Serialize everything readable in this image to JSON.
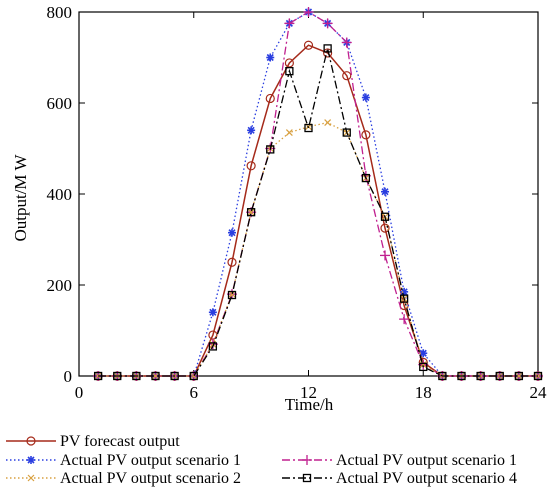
{
  "chart_data": {
    "type": "line",
    "title": "",
    "xlabel": "Time/h",
    "ylabel": "Output/M W",
    "xlim": [
      0,
      24
    ],
    "ylim": [
      0,
      800
    ],
    "xticks": [
      0,
      6,
      12,
      18,
      24
    ],
    "yticks": [
      0,
      200,
      400,
      600,
      800
    ],
    "grid": false,
    "legend_position": "bottom",
    "x": [
      1,
      2,
      3,
      4,
      5,
      6,
      7,
      8,
      9,
      10,
      11,
      12,
      13,
      14,
      15,
      16,
      17,
      18,
      19,
      20,
      21,
      22,
      23,
      24
    ],
    "series": [
      {
        "name": "PV forecast output",
        "color": "#a52a1a",
        "marker": "circle",
        "dash": "solid",
        "values": [
          0,
          0,
          0,
          0,
          0,
          0,
          90,
          250,
          462,
          610,
          688,
          727,
          710,
          660,
          530,
          325,
          155,
          30,
          0,
          0,
          0,
          0,
          0,
          0
        ]
      },
      {
        "name": "Actual PV output scenario 1",
        "color": "#2a3ee0",
        "marker": "asterisk",
        "dash": "dotted",
        "values": [
          0,
          0,
          0,
          0,
          0,
          0,
          140,
          315,
          540,
          700,
          775,
          800,
          775,
          733,
          612,
          405,
          185,
          50,
          0,
          0,
          0,
          0,
          0,
          0
        ]
      },
      {
        "name": "Actual PV output scenario 1",
        "color": "#c0208f",
        "marker": "plus",
        "dash": "dashdot",
        "values": [
          0,
          0,
          0,
          0,
          0,
          0,
          70,
          180,
          360,
          500,
          775,
          800,
          775,
          733,
          440,
          265,
          125,
          25,
          0,
          0,
          0,
          0,
          0,
          0
        ]
      },
      {
        "name": "Actual PV output scenario 2",
        "color": "#d8a040",
        "marker": "x",
        "dash": "dotted",
        "values": [
          0,
          0,
          0,
          0,
          0,
          0,
          70,
          180,
          360,
          500,
          535,
          548,
          557,
          535,
          435,
          350,
          170,
          25,
          0,
          0,
          0,
          0,
          0,
          0
        ]
      },
      {
        "name": "Actual PV output scenario 4",
        "color": "#000000",
        "marker": "square",
        "dash": "dashdot",
        "values": [
          0,
          0,
          0,
          0,
          0,
          0,
          65,
          178,
          360,
          498,
          670,
          545,
          720,
          535,
          435,
          350,
          170,
          20,
          0,
          0,
          0,
          0,
          0,
          0
        ]
      }
    ]
  }
}
